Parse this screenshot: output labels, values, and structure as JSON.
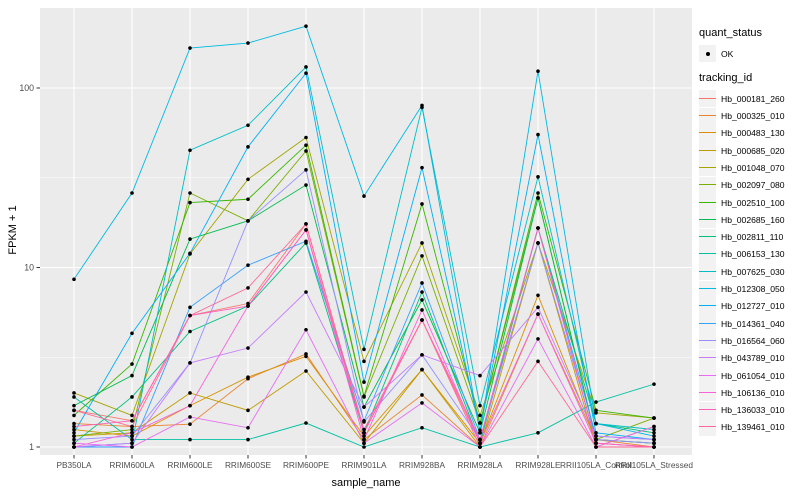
{
  "legend": {
    "quant_status_title": "quant_status",
    "quant_status_value": "OK",
    "tracking_id_title": "tracking_id"
  },
  "chart_data": {
    "type": "line",
    "xlabel": "sample_name",
    "ylabel": "FPKM + 1",
    "y_scale": "log10",
    "ylim": [
      1,
      250
    ],
    "yticks": [
      1,
      10,
      100
    ],
    "grid": true,
    "legend_position": "right",
    "panel_bg": "#EBEBEB",
    "grid_color": "#FFFFFF",
    "point_color": "#000000",
    "x_categories": [
      "PB350LA",
      "RRIM600LA",
      "RRIM600LE",
      "RRIM600SE",
      "RRIM600PE",
      "RRIM901LA",
      "RRIM928BA",
      "RRIM928LA",
      "RRIM928LE",
      "RRII105LA_Control",
      "RRII105LA_Stressed"
    ],
    "series": [
      {
        "name": "Hb_000181_260",
        "color": "#F8766D",
        "values": [
          1.6,
          1.4,
          5.4,
          6.3,
          17.5,
          1.2,
          5.1,
          1.05,
          16.6,
          1.05,
          1.0
        ]
      },
      {
        "name": "Hb_000325_010",
        "color": "#EA8331",
        "values": [
          1.35,
          1.3,
          1.34,
          2.4,
          3.3,
          1.1,
          1.95,
          1.0,
          5.5,
          1.1,
          1.0
        ]
      },
      {
        "name": "Hb_000483_130",
        "color": "#D89000",
        "values": [
          1.25,
          1.15,
          1.7,
          2.45,
          3.2,
          1.15,
          2.7,
          1.05,
          7.0,
          1.1,
          1.05
        ]
      },
      {
        "name": "Hb_000685_020",
        "color": "#C09B00",
        "values": [
          1.15,
          1.2,
          2.0,
          1.6,
          2.65,
          1.05,
          2.7,
          1.0,
          13.7,
          1.0,
          1.3
        ]
      },
      {
        "name": "Hb_001048_070",
        "color": "#A3A500",
        "values": [
          2.0,
          1.5,
          11.9,
          31,
          53,
          3.0,
          13.7,
          1.5,
          13.7,
          1.55,
          1.45
        ]
      },
      {
        "name": "Hb_002097_080",
        "color": "#7CAE00",
        "values": [
          1.15,
          1.25,
          26,
          18.2,
          44.6,
          1.9,
          11.6,
          1.36,
          24.4,
          1.1,
          1.45
        ]
      },
      {
        "name": "Hb_002510_100",
        "color": "#39B600",
        "values": [
          1.5,
          2.9,
          23,
          24,
          48,
          1.92,
          22.6,
          1.36,
          26,
          1.6,
          1.45
        ]
      },
      {
        "name": "Hb_002685_160",
        "color": "#00BB4E",
        "values": [
          1.7,
          2.5,
          14.4,
          18.2,
          28.8,
          1.67,
          6.6,
          1.2,
          24.4,
          1.1,
          1.05
        ]
      },
      {
        "name": "Hb_002811_110",
        "color": "#00BF7D",
        "values": [
          1.05,
          1.9,
          4.4,
          6.1,
          13.7,
          1.2,
          7.3,
          1.05,
          16.6,
          1.35,
          1.2
        ]
      },
      {
        "name": "Hb_006153_130",
        "color": "#00C1A3",
        "values": [
          1.9,
          1.1,
          1.1,
          1.1,
          1.36,
          1.0,
          1.28,
          1.0,
          1.2,
          1.78,
          2.24
        ]
      },
      {
        "name": "Hb_007625_030",
        "color": "#00BFC4",
        "values": [
          1.0,
          1.05,
          45,
          62,
          131,
          3.5,
          78,
          1.7,
          32,
          1.35,
          1.25
        ]
      },
      {
        "name": "Hb_012308_050",
        "color": "#00BAE0",
        "values": [
          8.6,
          26,
          167,
          178,
          221,
          25,
          80,
          1.2,
          124,
          1.35,
          1.15
        ]
      },
      {
        "name": "Hb_012727_010",
        "color": "#00B0F6",
        "values": [
          1.2,
          4.3,
          12,
          47,
          121,
          2.3,
          36,
          1.24,
          55,
          1.2,
          1.1
        ]
      },
      {
        "name": "Hb_014361_040",
        "color": "#35A2FF",
        "values": [
          1.0,
          1.0,
          6.0,
          10.3,
          14,
          1.4,
          8.2,
          1.1,
          16.6,
          1.15,
          1.1
        ]
      },
      {
        "name": "Hb_016564_060",
        "color": "#9590FF",
        "values": [
          1.1,
          1.15,
          2.94,
          18.2,
          35,
          1.38,
          3.26,
          1.1,
          13.7,
          1.1,
          1.05
        ]
      },
      {
        "name": "Hb_043789_010",
        "color": "#C77CFF",
        "values": [
          1.0,
          1.05,
          2.94,
          3.56,
          7.3,
          1.67,
          3.26,
          2.5,
          6.0,
          1.15,
          1.1
        ]
      },
      {
        "name": "Hb_061054_010",
        "color": "#E76BF3",
        "values": [
          1.05,
          1.0,
          1.47,
          1.28,
          4.5,
          1.05,
          1.76,
          1.0,
          4.0,
          1.0,
          1.3
        ]
      },
      {
        "name": "Hb_106136_010",
        "color": "#FA62DB",
        "values": [
          1.0,
          1.2,
          1.7,
          6.1,
          16.2,
          1.1,
          5.8,
          1.05,
          5.5,
          1.05,
          1.0
        ]
      },
      {
        "name": "Hb_136033_010",
        "color": "#FF62BC",
        "values": [
          1.3,
          1.4,
          5.4,
          6.1,
          16.2,
          1.2,
          5.1,
          1.1,
          16.6,
          1.05,
          1.0
        ]
      },
      {
        "name": "Hb_139461_010",
        "color": "#FF6A98",
        "values": [
          1.6,
          1.3,
          5.4,
          7.7,
          17.5,
          1.25,
          5.1,
          1.0,
          3.0,
          1.0,
          1.0
        ]
      }
    ]
  }
}
